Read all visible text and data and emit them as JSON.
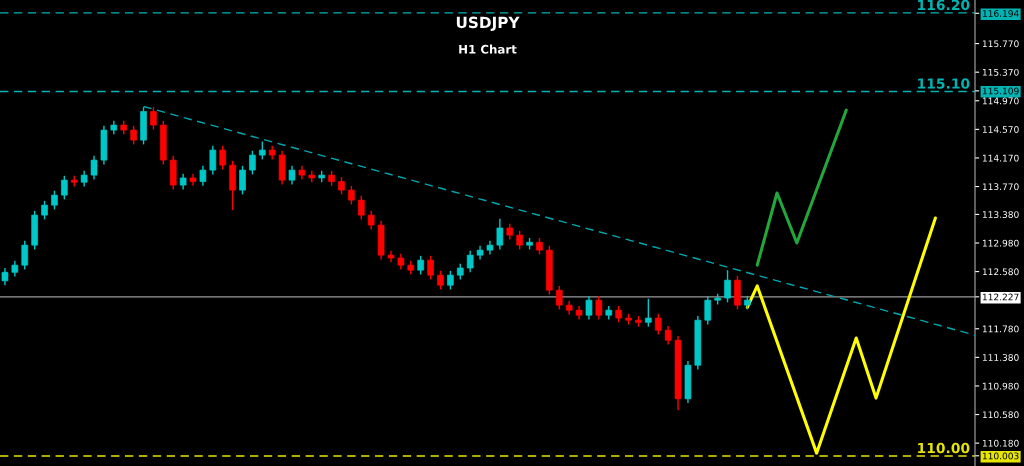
{
  "chart_data": {
    "type": "candlestick",
    "title": "USDJPY",
    "subtitle": "H1 Chart",
    "categories": [
      null,
      null,
      null,
      null,
      null,
      null,
      null,
      null,
      null,
      null,
      null,
      null,
      null,
      null,
      null,
      null,
      null,
      null,
      null,
      null,
      null,
      null,
      null,
      null,
      null,
      null,
      null,
      null,
      null,
      null,
      null,
      null,
      null,
      null,
      null,
      null,
      null,
      null,
      null,
      null,
      null,
      null,
      null,
      null,
      null,
      null,
      null,
      null,
      null,
      null,
      null,
      null,
      null,
      null,
      null,
      null,
      null,
      null,
      null,
      null,
      null,
      null,
      null,
      null,
      null,
      null,
      null,
      null,
      null,
      null,
      null,
      null,
      null,
      null,
      null,
      null,
      null,
      null,
      null,
      null,
      null,
      null,
      null,
      null,
      null,
      null,
      null,
      null,
      null,
      null,
      null,
      null,
      null,
      null,
      null,
      null,
      null,
      null,
      null
    ],
    "ohlc": [
      [
        112.45,
        112.63,
        112.39,
        112.57
      ],
      [
        112.57,
        112.73,
        112.51,
        112.67
      ],
      [
        112.67,
        113.01,
        112.61,
        112.95
      ],
      [
        112.95,
        113.43,
        112.89,
        113.37
      ],
      [
        113.37,
        113.57,
        113.31,
        113.51
      ],
      [
        113.51,
        113.71,
        113.45,
        113.65
      ],
      [
        113.65,
        113.92,
        113.59,
        113.86
      ],
      [
        113.86,
        113.92,
        113.77,
        113.83
      ],
      [
        113.83,
        113.99,
        113.77,
        113.93
      ],
      [
        113.93,
        114.2,
        113.87,
        114.14
      ],
      [
        114.14,
        114.62,
        114.08,
        114.56
      ],
      [
        114.56,
        114.69,
        114.5,
        114.63
      ],
      [
        114.63,
        114.69,
        114.5,
        114.56
      ],
      [
        114.56,
        114.62,
        114.36,
        114.42
      ],
      [
        114.42,
        114.88,
        114.36,
        114.82
      ],
      [
        114.82,
        114.88,
        114.57,
        114.63
      ],
      [
        114.63,
        114.69,
        114.08,
        114.14
      ],
      [
        114.14,
        114.2,
        113.73,
        113.79
      ],
      [
        113.79,
        113.95,
        113.73,
        113.89
      ],
      [
        113.89,
        113.95,
        113.78,
        113.84
      ],
      [
        113.84,
        114.06,
        113.78,
        114.0
      ],
      [
        114.0,
        114.34,
        113.94,
        114.28
      ],
      [
        114.28,
        114.34,
        114.01,
        114.07
      ],
      [
        114.07,
        114.13,
        113.44,
        113.72
      ],
      [
        113.72,
        114.06,
        113.66,
        114.0
      ],
      [
        114.0,
        114.27,
        113.94,
        114.21
      ],
      [
        114.21,
        114.4,
        114.15,
        114.28
      ],
      [
        114.28,
        114.34,
        114.15,
        114.21
      ],
      [
        114.21,
        114.27,
        113.8,
        113.86
      ],
      [
        113.86,
        114.06,
        113.8,
        114.0
      ],
      [
        114.0,
        114.06,
        113.87,
        113.93
      ],
      [
        113.93,
        113.99,
        113.83,
        113.89
      ],
      [
        113.89,
        113.99,
        113.83,
        113.93
      ],
      [
        113.93,
        113.99,
        113.78,
        113.84
      ],
      [
        113.84,
        113.9,
        113.66,
        113.72
      ],
      [
        113.72,
        113.78,
        113.52,
        113.58
      ],
      [
        113.58,
        113.64,
        113.31,
        113.37
      ],
      [
        113.37,
        113.43,
        113.17,
        113.23
      ],
      [
        113.23,
        113.29,
        112.75,
        112.81
      ],
      [
        112.81,
        112.87,
        112.71,
        112.77
      ],
      [
        112.77,
        112.83,
        112.61,
        112.67
      ],
      [
        112.67,
        112.73,
        112.54,
        112.6
      ],
      [
        112.6,
        112.8,
        112.54,
        112.74
      ],
      [
        112.74,
        112.8,
        112.47,
        112.53
      ],
      [
        112.53,
        112.59,
        112.33,
        112.39
      ],
      [
        112.39,
        112.59,
        112.33,
        112.53
      ],
      [
        112.53,
        112.69,
        112.47,
        112.63
      ],
      [
        112.63,
        112.87,
        112.57,
        112.81
      ],
      [
        112.81,
        112.94,
        112.75,
        112.88
      ],
      [
        112.88,
        113.01,
        112.82,
        112.95
      ],
      [
        112.95,
        113.32,
        112.89,
        113.19
      ],
      [
        113.19,
        113.25,
        113.03,
        113.09
      ],
      [
        113.09,
        113.15,
        112.89,
        112.95
      ],
      [
        112.95,
        113.05,
        112.89,
        112.99
      ],
      [
        112.99,
        113.05,
        112.82,
        112.88
      ],
      [
        112.88,
        112.94,
        112.26,
        112.32
      ],
      [
        112.32,
        112.38,
        112.05,
        112.11
      ],
      [
        112.11,
        112.17,
        111.98,
        112.04
      ],
      [
        112.04,
        112.1,
        111.91,
        111.97
      ],
      [
        111.97,
        112.24,
        111.91,
        112.18
      ],
      [
        112.18,
        112.24,
        111.91,
        111.97
      ],
      [
        111.97,
        112.1,
        111.91,
        112.04
      ],
      [
        112.04,
        112.1,
        111.87,
        111.93
      ],
      [
        111.93,
        111.99,
        111.84,
        111.9
      ],
      [
        111.9,
        111.96,
        111.81,
        111.87
      ],
      [
        111.87,
        112.2,
        111.81,
        111.93
      ],
      [
        111.93,
        111.99,
        111.7,
        111.76
      ],
      [
        111.76,
        111.82,
        111.56,
        111.62
      ],
      [
        111.62,
        111.68,
        110.64,
        110.8
      ],
      [
        110.8,
        111.33,
        110.74,
        111.27
      ],
      [
        111.27,
        111.96,
        111.21,
        111.9
      ],
      [
        111.9,
        112.24,
        111.84,
        112.18
      ],
      [
        112.18,
        112.27,
        112.12,
        112.21
      ],
      [
        112.21,
        112.6,
        112.15,
        112.46
      ],
      [
        112.46,
        112.52,
        112.05,
        112.11
      ],
      [
        112.11,
        112.24,
        112.05,
        112.18
      ],
      null,
      null,
      null,
      null,
      null,
      null,
      null,
      null,
      null,
      null,
      null,
      null,
      null,
      null,
      null,
      null,
      null,
      null,
      null,
      null,
      null,
      null,
      null
    ],
    "colors": [
      "#00c8c8",
      "#00c8c8",
      "#00c8c8",
      "#00c8c8",
      "#00c8c8",
      "#00c8c8",
      "#00c8c8",
      "#ff0000",
      "#00c8c8",
      "#00c8c8",
      "#00c8c8",
      "#00c8c8",
      "#ff0000",
      "#ff0000",
      "#00c8c8",
      "#ff0000",
      "#ff0000",
      "#ff0000",
      "#00c8c8",
      "#ff0000",
      "#00c8c8",
      "#00c8c8",
      "#ff0000",
      "#ff0000",
      "#00c8c8",
      "#00c8c8",
      "#00c8c8",
      "#ff0000",
      "#ff0000",
      "#00c8c8",
      "#ff0000",
      "#ff0000",
      "#00c8c8",
      "#ff0000",
      "#ff0000",
      "#ff0000",
      "#ff0000",
      "#ff0000",
      "#ff0000",
      "#ff0000",
      "#ff0000",
      "#ff0000",
      "#00c8c8",
      "#ff0000",
      "#ff0000",
      "#00c8c8",
      "#00c8c8",
      "#00c8c8",
      "#00c8c8",
      "#00c8c8",
      "#00c8c8",
      "#ff0000",
      "#ff0000",
      "#00c8c8",
      "#ff0000",
      "#ff0000",
      "#ff0000",
      "#ff0000",
      "#ff0000",
      "#00c8c8",
      "#ff0000",
      "#00c8c8",
      "#ff0000",
      "#ff0000",
      "#ff0000",
      "#00c8c8",
      "#ff0000",
      "#ff0000",
      "#ff0000",
      "#00c8c8",
      "#00c8c8",
      "#00c8c8",
      "#00c8c8",
      "#00c8c8",
      "#ff0000",
      "#00c8c8",
      null,
      null,
      null,
      null,
      null,
      null,
      null,
      null,
      null,
      null,
      null,
      null,
      null,
      null,
      null,
      null,
      null,
      null,
      null,
      null,
      null,
      null,
      null
    ],
    "series": [
      {
        "type": "line",
        "line_style": "dashed",
        "color": "#00a8b0",
        "values": [
          null,
          null,
          null,
          null,
          null,
          null,
          null,
          null,
          null,
          null,
          null,
          null,
          null,
          null,
          114.89,
          null,
          null,
          null,
          null,
          null,
          null,
          null,
          null,
          null,
          null,
          null,
          null,
          null,
          null,
          null,
          null,
          null,
          null,
          null,
          null,
          null,
          null,
          null,
          null,
          null,
          null,
          null,
          null,
          null,
          null,
          null,
          null,
          null,
          null,
          null,
          null,
          null,
          null,
          null,
          null,
          null,
          null,
          null,
          null,
          null,
          null,
          null,
          null,
          null,
          null,
          null,
          null,
          null,
          null,
          null,
          null,
          null,
          null,
          null,
          null,
          null,
          null,
          null,
          null,
          null,
          null,
          null,
          null,
          null,
          null,
          null,
          null,
          null,
          null,
          null,
          null,
          null,
          null,
          null,
          null,
          null,
          null,
          null,
          111.69
        ]
      },
      {
        "type": "line",
        "color": "#22a83a",
        "values": [
          null,
          null,
          null,
          null,
          null,
          null,
          null,
          null,
          null,
          null,
          null,
          null,
          null,
          null,
          null,
          null,
          null,
          null,
          null,
          null,
          null,
          null,
          null,
          null,
          null,
          null,
          null,
          null,
          null,
          null,
          null,
          null,
          null,
          null,
          null,
          null,
          null,
          null,
          null,
          null,
          null,
          null,
          null,
          null,
          null,
          null,
          null,
          null,
          null,
          null,
          null,
          null,
          null,
          null,
          null,
          null,
          null,
          null,
          null,
          null,
          null,
          null,
          null,
          null,
          null,
          null,
          null,
          null,
          null,
          null,
          null,
          null,
          null,
          null,
          null,
          null,
          112.67,
          null,
          113.68,
          null,
          112.98,
          null,
          null,
          null,
          null,
          114.84,
          null,
          null,
          null,
          null,
          null,
          null,
          null,
          null,
          null,
          null,
          null,
          null,
          null
        ]
      },
      {
        "type": "line",
        "color": "#ffff00",
        "values": [
          null,
          null,
          null,
          null,
          null,
          null,
          null,
          null,
          null,
          null,
          null,
          null,
          null,
          null,
          null,
          null,
          null,
          null,
          null,
          null,
          null,
          null,
          null,
          null,
          null,
          null,
          null,
          null,
          null,
          null,
          null,
          null,
          null,
          null,
          null,
          null,
          null,
          null,
          null,
          null,
          null,
          null,
          null,
          null,
          null,
          null,
          null,
          null,
          null,
          null,
          null,
          null,
          null,
          null,
          null,
          null,
          null,
          null,
          null,
          null,
          null,
          null,
          null,
          null,
          null,
          null,
          null,
          null,
          null,
          null,
          null,
          null,
          null,
          null,
          null,
          112.08,
          112.38,
          null,
          null,
          null,
          null,
          null,
          110.04,
          null,
          null,
          null,
          111.65,
          null,
          110.81,
          null,
          null,
          null,
          null,
          null,
          113.33,
          null,
          null,
          null,
          null
        ]
      }
    ],
    "ref_lines": [
      {
        "axis": "y",
        "value": 116.2,
        "label": "116.20",
        "color": "#00b4b4",
        "line_style": "dashed"
      },
      {
        "axis": "y",
        "value": 115.1,
        "label": "115.10",
        "color": "#00b4b4",
        "line_style": "dashed"
      },
      {
        "axis": "y",
        "value": 112.227,
        "label": null,
        "color": "#9a9a9a",
        "line_style": "solid"
      },
      {
        "axis": "y",
        "value": 110.0,
        "label": "110.00",
        "color": "#e6e600",
        "line_style": "dashed"
      }
    ],
    "ylim": [
      109.86,
      116.38
    ],
    "yticks": [
      {
        "value": 116.194,
        "label": "116.194"
      },
      {
        "value": 115.77,
        "label": "115.770"
      },
      {
        "value": 115.37,
        "label": "115.370"
      },
      {
        "value": 115.109,
        "label": "115.109"
      },
      {
        "value": 114.97,
        "label": "114.970"
      },
      {
        "value": 114.57,
        "label": "114.570"
      },
      {
        "value": 114.17,
        "label": "114.170"
      },
      {
        "value": 113.77,
        "label": "113.770"
      },
      {
        "value": 113.38,
        "label": "113.380"
      },
      {
        "value": 112.98,
        "label": "112.980"
      },
      {
        "value": 112.58,
        "label": "112.580"
      },
      {
        "value": 112.227,
        "label": "112.227"
      },
      {
        "value": 111.78,
        "label": "111.780"
      },
      {
        "value": 111.38,
        "label": "111.380"
      },
      {
        "value": 110.98,
        "label": "110.980"
      },
      {
        "value": 110.58,
        "label": "110.580"
      },
      {
        "value": 110.18,
        "label": "110.180"
      },
      {
        "value": 110.003,
        "label": "110.003"
      }
    ],
    "tick_labels": "y",
    "grid": false,
    "legend": false
  }
}
